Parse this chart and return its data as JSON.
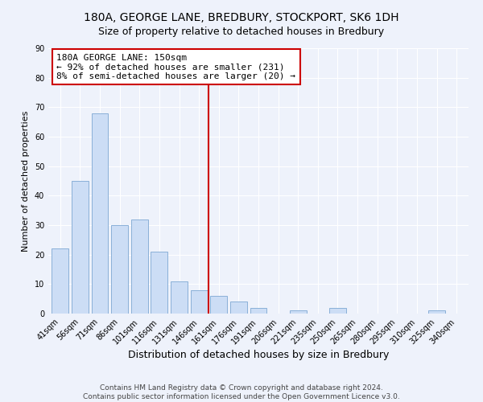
{
  "title": "180A, GEORGE LANE, BREDBURY, STOCKPORT, SK6 1DH",
  "subtitle": "Size of property relative to detached houses in Bredbury",
  "xlabel": "Distribution of detached houses by size in Bredbury",
  "ylabel": "Number of detached properties",
  "bar_color": "#ccddf5",
  "bar_edge_color": "#8ab0d8",
  "categories": [
    "41sqm",
    "56sqm",
    "71sqm",
    "86sqm",
    "101sqm",
    "116sqm",
    "131sqm",
    "146sqm",
    "161sqm",
    "176sqm",
    "191sqm",
    "206sqm",
    "221sqm",
    "235sqm",
    "250sqm",
    "265sqm",
    "280sqm",
    "295sqm",
    "310sqm",
    "325sqm",
    "340sqm"
  ],
  "values": [
    22,
    45,
    68,
    30,
    32,
    21,
    11,
    8,
    6,
    4,
    2,
    0,
    1,
    0,
    2,
    0,
    0,
    0,
    0,
    1,
    0
  ],
  "ylim": [
    0,
    90
  ],
  "yticks": [
    0,
    10,
    20,
    30,
    40,
    50,
    60,
    70,
    80,
    90
  ],
  "vline_index": 7.5,
  "vline_color": "#cc0000",
  "annotation_title": "180A GEORGE LANE: 150sqm",
  "annotation_line1": "← 92% of detached houses are smaller (231)",
  "annotation_line2": "8% of semi-detached houses are larger (20) →",
  "footer1": "Contains HM Land Registry data © Crown copyright and database right 2024.",
  "footer2": "Contains public sector information licensed under the Open Government Licence v3.0.",
  "bg_color": "#eef2fb",
  "plot_bg_color": "#eef2fb",
  "title_fontsize": 10,
  "xlabel_fontsize": 9,
  "ylabel_fontsize": 8,
  "tick_fontsize": 7,
  "annotation_fontsize": 8,
  "footer_fontsize": 6.5
}
